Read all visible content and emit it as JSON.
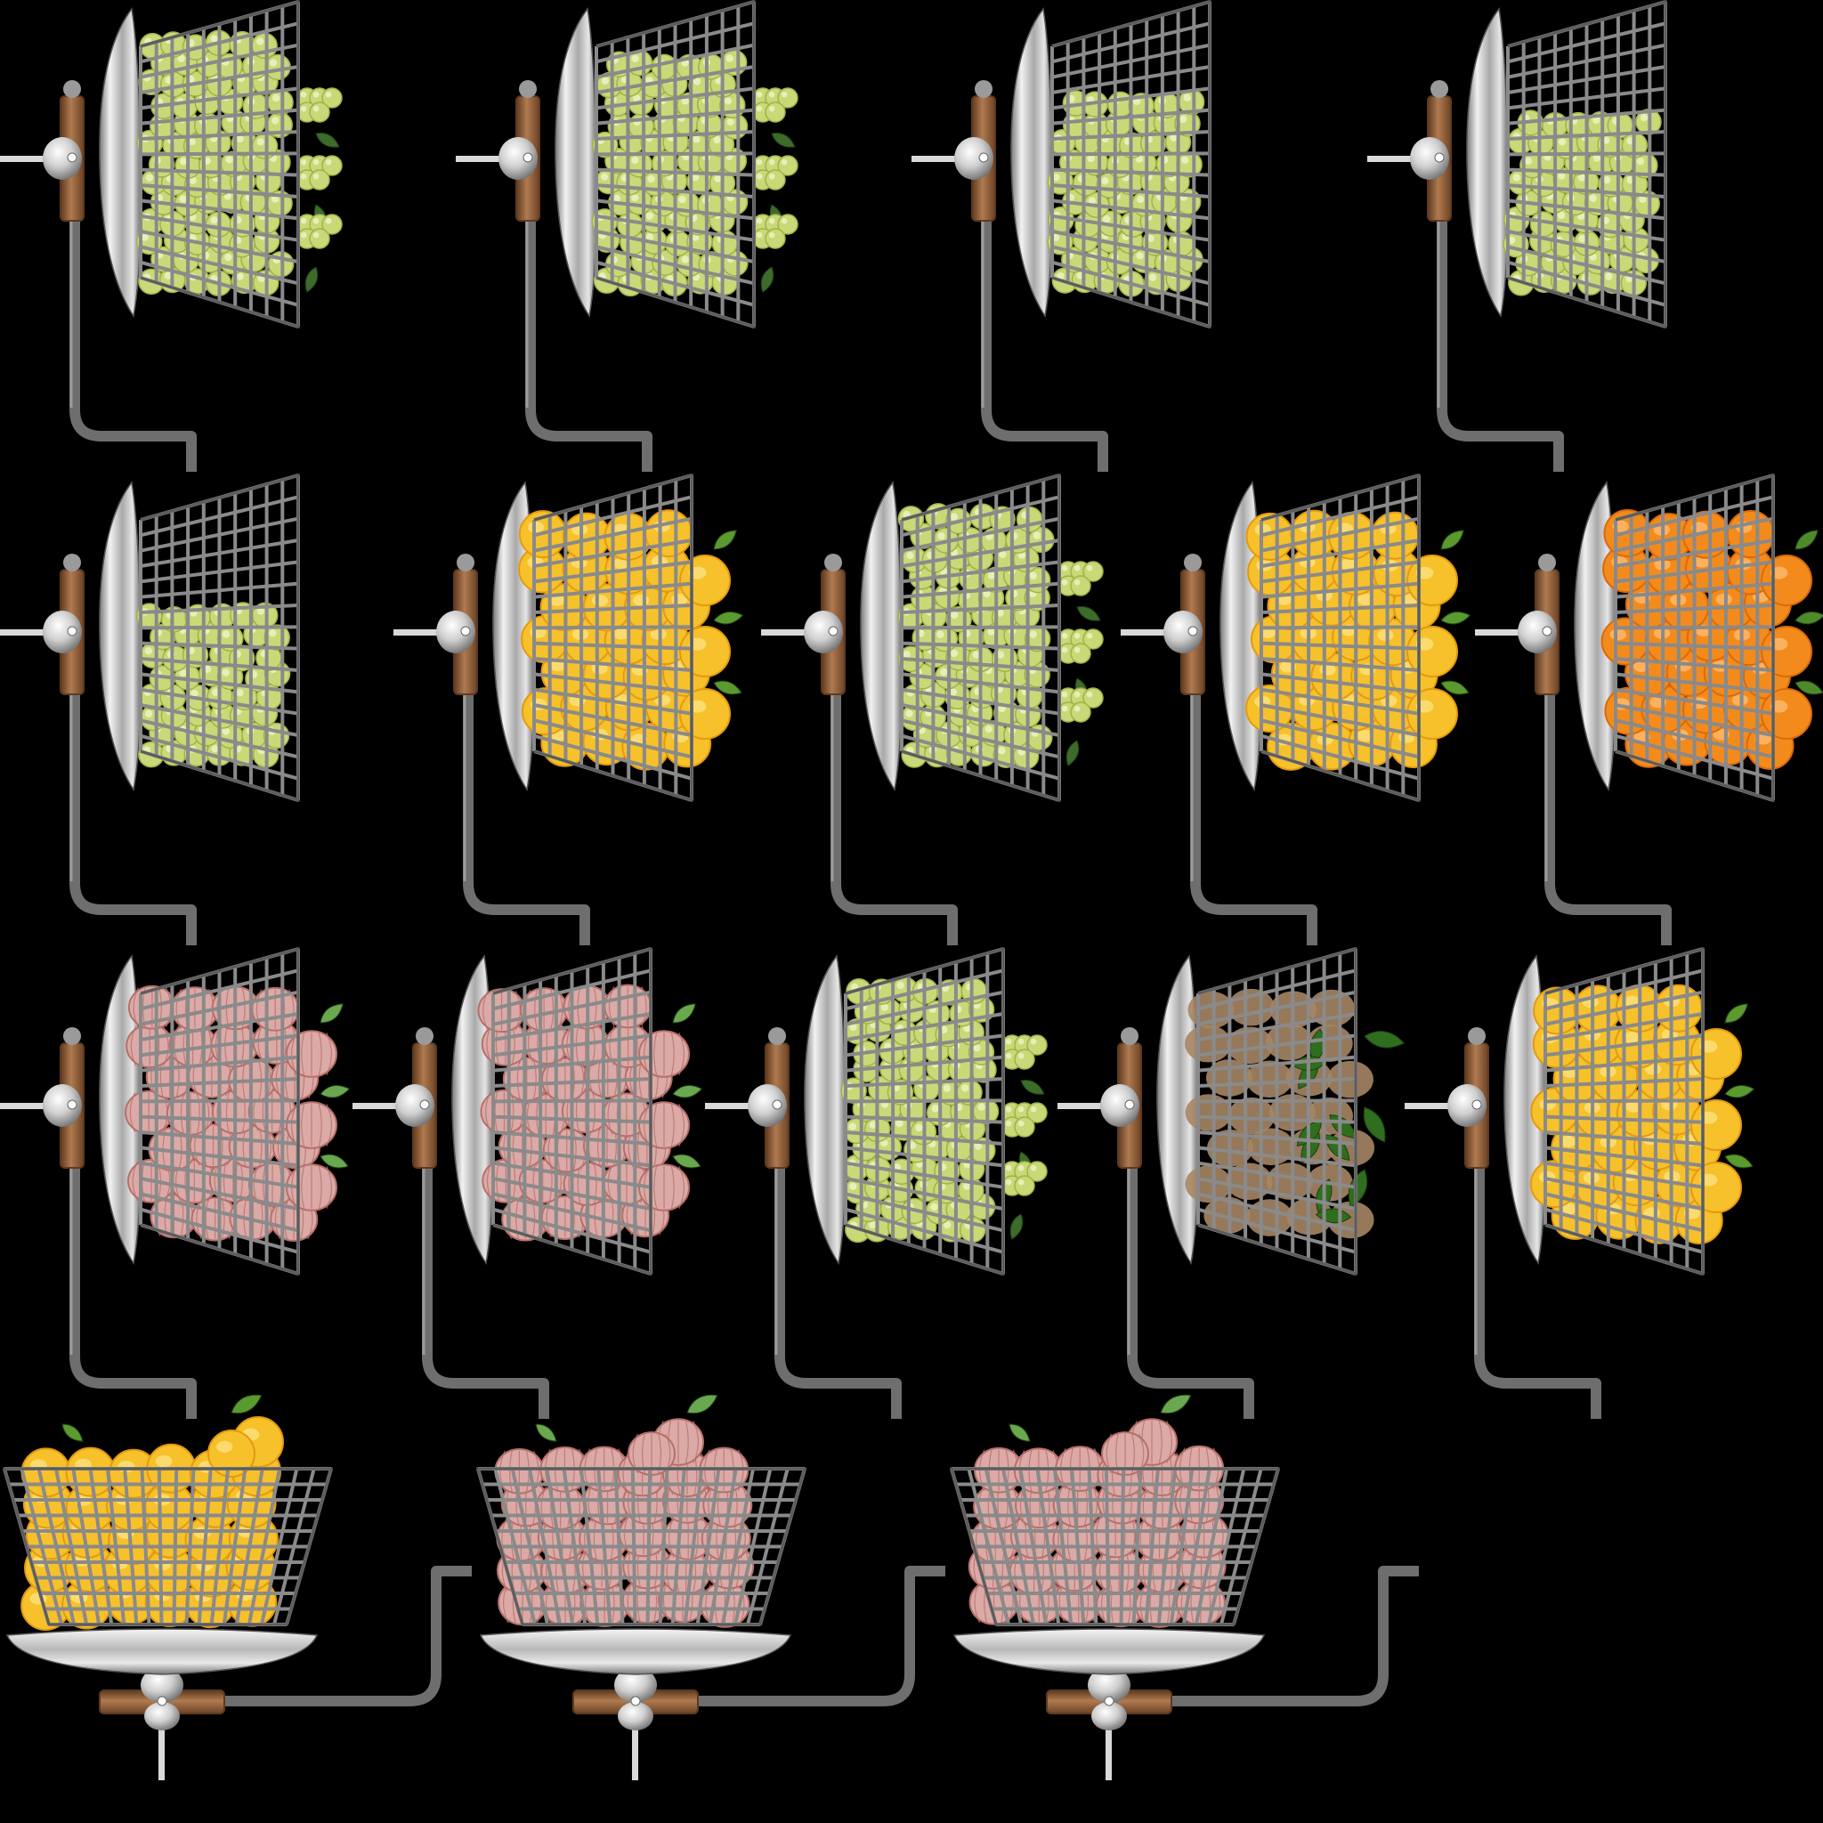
{
  "sheet": {
    "background": "#000000",
    "colors": {
      "grid": "#8a8a8a",
      "grid_dark": "#5c5c5c",
      "pipe": "#6e6e6e",
      "pipe_light": "#9c9c9c",
      "wood": "#8b5a35",
      "wood_dark": "#5e3a20",
      "wood_light": "#b07a4f"
    },
    "fruit_palette": {
      "grapes": {
        "fill": "#c9d977",
        "shade": "#9fb24a",
        "hi": "#eef4c8",
        "leaf": "#3d6b2a"
      },
      "pears": {
        "fill": "#f6c12a",
        "shade": "#e39a12",
        "hi": "#fde58a",
        "leaf": "#5a9a2e"
      },
      "oranges": {
        "fill": "#f38b1c",
        "shade": "#d96a0c",
        "hi": "#ffc27a",
        "leaf": "#4f8a2a"
      },
      "onions": {
        "fill": "#dcaaa6",
        "shade": "#b5706c",
        "hi": "#f5dcda",
        "leaf": "#6aa84f"
      },
      "herbs": {
        "fill": "#a68565",
        "shade": "#7b5d40",
        "hi": "#c8aa88",
        "leaf": "#2e6e1e"
      }
    },
    "rows": [
      {
        "orientation": "side",
        "sprites": [
          {
            "fruit": "grapes",
            "fill": 1.0,
            "overflow": true
          },
          {
            "fruit": "grapes",
            "fill": 0.85,
            "overflow": true
          },
          {
            "fruit": "grapes",
            "fill": 0.6,
            "overflow": false
          },
          {
            "fruit": "grapes",
            "fill": 0.4,
            "overflow": false
          }
        ]
      },
      {
        "orientation": "side",
        "sprites": [
          {
            "fruit": "grapes",
            "fill": 0.25,
            "overflow": false
          },
          {
            "fruit": "pears",
            "fill": 1.0,
            "overflow": true
          },
          {
            "fruit": "grapes",
            "fill": 1.0,
            "overflow": true
          },
          {
            "fruit": "pears",
            "fill": 1.0,
            "overflow": true
          },
          {
            "fruit": "oranges",
            "fill": 1.0,
            "overflow": true
          }
        ]
      },
      {
        "orientation": "side",
        "sprites": [
          {
            "fruit": "onions",
            "fill": 1.0,
            "overflow": true
          },
          {
            "fruit": "onions",
            "fill": 1.0,
            "overflow": true
          },
          {
            "fruit": "grapes",
            "fill": 1.0,
            "overflow": true
          },
          {
            "fruit": "herbs",
            "fill": 1.0,
            "overflow": true
          },
          {
            "fruit": "pears",
            "fill": 1.0,
            "overflow": true
          }
        ]
      },
      {
        "orientation": "top",
        "sprites": [
          {
            "fruit": "pears",
            "fill": 1.0,
            "overflow": true
          },
          {
            "fruit": "onions",
            "fill": 1.0,
            "overflow": true
          },
          {
            "fruit": "onions",
            "fill": 1.0,
            "overflow": true
          }
        ]
      }
    ]
  }
}
